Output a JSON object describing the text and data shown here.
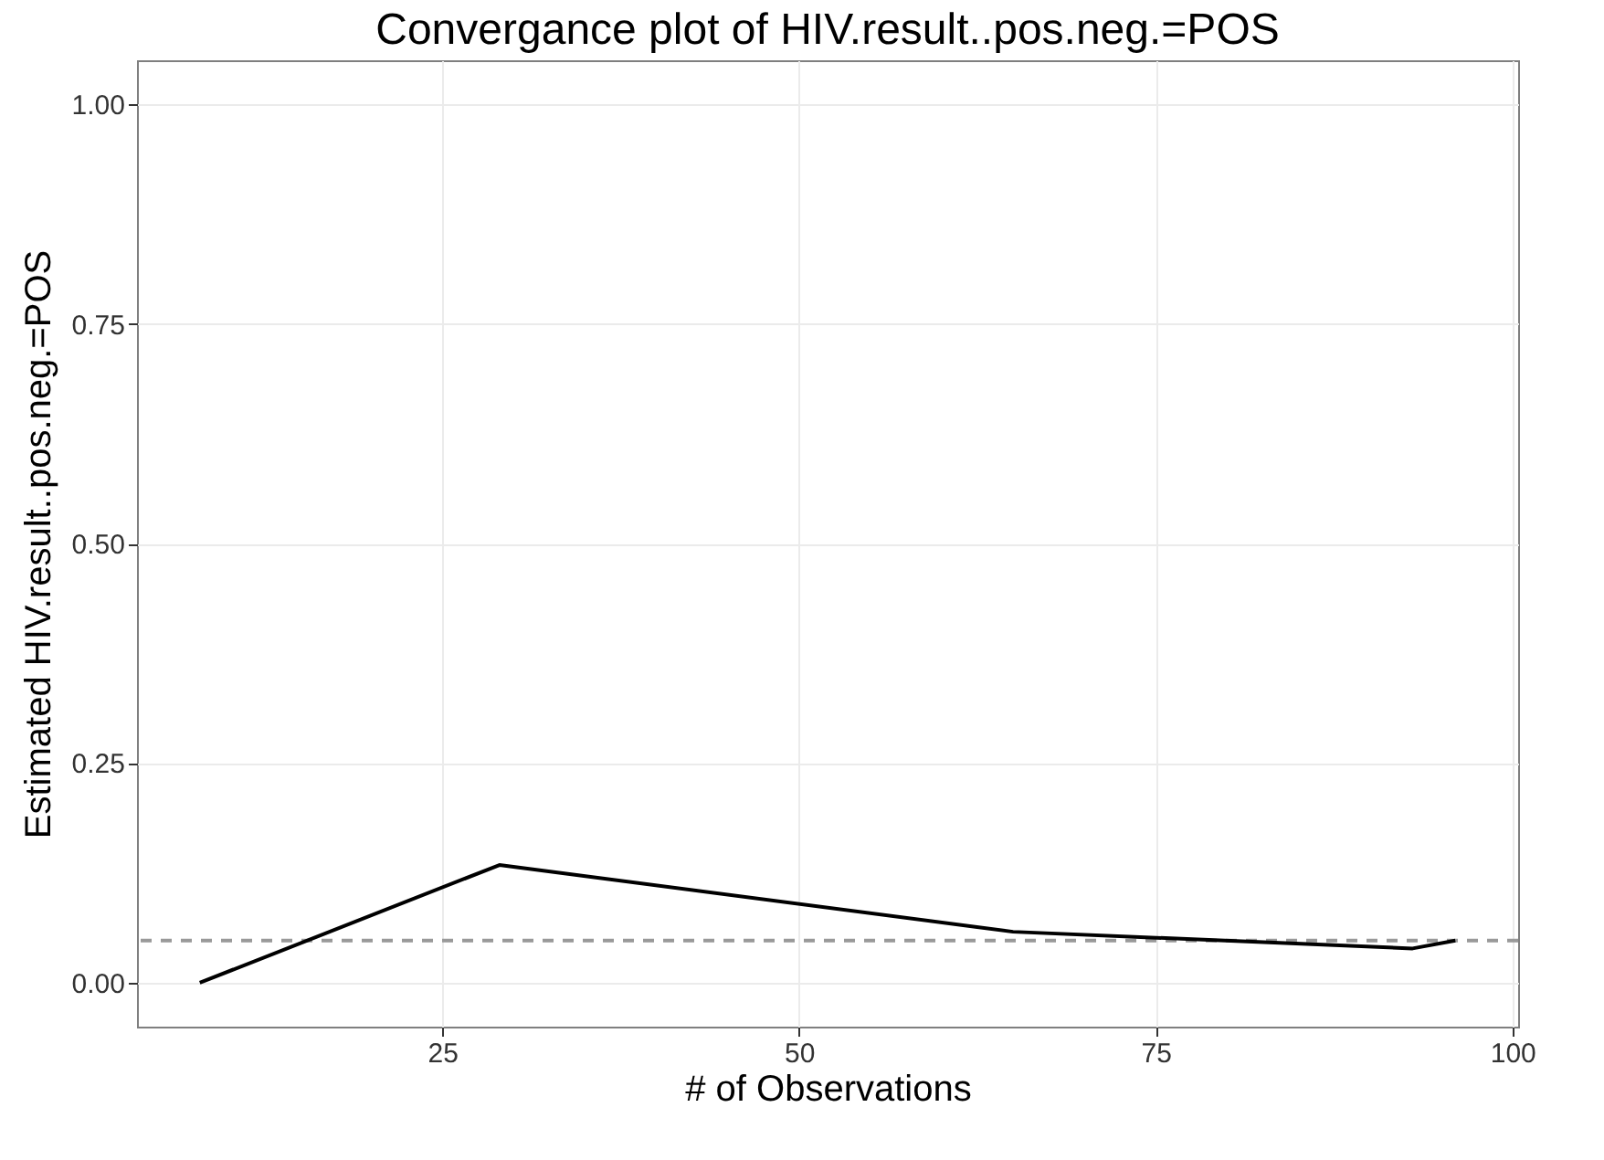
{
  "chart_data": {
    "type": "line",
    "title": "Convergance plot of HIV.result..pos.neg.=POS",
    "xlabel": "# of Observations",
    "ylabel": "Estimated HIV.result..pos.neg.=POS",
    "x": [
      8,
      29,
      65,
      93,
      96
    ],
    "series": [
      {
        "color": "#000000",
        "values": [
          0,
          0.134,
          0.058,
          0.039,
          0.048
        ]
      }
    ],
    "xlim": [
      3.6,
      100.4
    ],
    "xticks": [
      25,
      50,
      75,
      100
    ],
    "ylim": [
      -0.05,
      1.05
    ],
    "yticks": [
      {
        "value": 0,
        "label": "0.00"
      },
      {
        "value": 0.25,
        "label": "0.25"
      },
      {
        "value": 0.5,
        "label": "0.50"
      },
      {
        "value": 0.75,
        "label": "0.75"
      },
      {
        "value": 1,
        "label": "1.00"
      }
    ],
    "grid": true,
    "marker": "none",
    "line_style": "solid",
    "ref_lines": [
      {
        "axis": "y",
        "value": 0.048,
        "color": "#999999",
        "line_style": "dashed"
      }
    ]
  }
}
